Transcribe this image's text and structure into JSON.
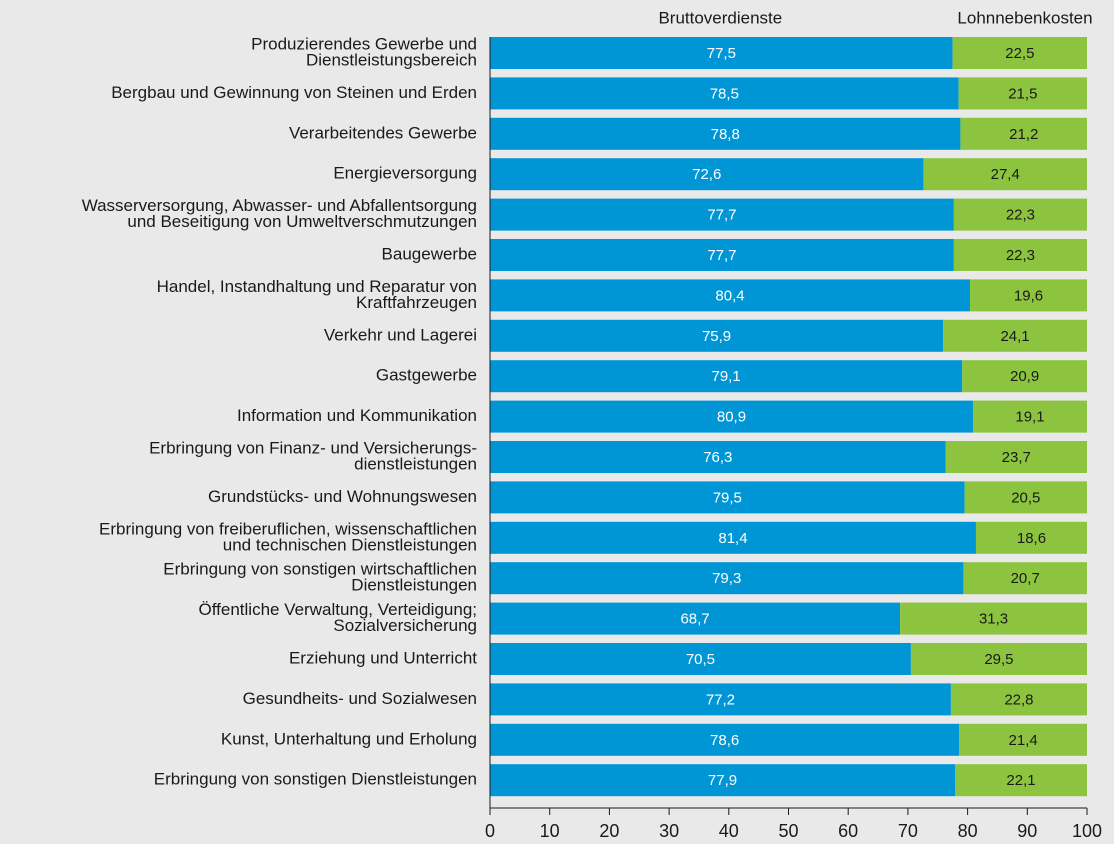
{
  "chart_data": {
    "type": "stacked_barh",
    "categories": [
      [
        "Produzierendes Gewerbe und",
        "Dienstleistungsbereich"
      ],
      [
        "Bergbau und Gewinnung von Steinen und Erden"
      ],
      [
        "Verarbeitendes Gewerbe"
      ],
      [
        "Energieversorgung"
      ],
      [
        "Wasserversorgung, Abwasser- und Abfallentsorgung",
        "und Beseitigung von Umweltverschmutzungen"
      ],
      [
        "Baugewerbe"
      ],
      [
        "Handel, Instandhaltung und Reparatur von",
        "Kraftfahrzeugen"
      ],
      [
        "Verkehr und Lagerei"
      ],
      [
        "Gastgewerbe"
      ],
      [
        "Information und Kommunikation"
      ],
      [
        "Erbringung von Finanz- und Versicherungs-",
        "dienstleistungen"
      ],
      [
        "Grundstücks- und Wohnungswesen"
      ],
      [
        "Erbringung von freiberuflichen, wissenschaftlichen",
        "und technischen Dienstleistungen"
      ],
      [
        "Erbringung von sonstigen wirtschaftlichen",
        "Dienstleistungen"
      ],
      [
        "Öffentliche Verwaltung, Verteidigung;",
        "Sozialversicherung"
      ],
      [
        "Erziehung und Unterricht"
      ],
      [
        "Gesundheits- und Sozialwesen"
      ],
      [
        "Kunst, Unterhaltung und Erholung"
      ],
      [
        "Erbringung von sonstigen Dienstleistungen"
      ]
    ],
    "series": [
      {
        "name": "Bruttoverdienste",
        "color": "#0096d6",
        "values": [
          77.5,
          78.5,
          78.8,
          72.6,
          77.7,
          77.7,
          80.4,
          75.9,
          79.1,
          80.9,
          76.3,
          79.5,
          81.4,
          79.3,
          68.7,
          70.5,
          77.2,
          78.6,
          77.9
        ],
        "value_labels": [
          "77,5",
          "78,5",
          "78,8",
          "72,6",
          "77,7",
          "77,7",
          "80,4",
          "75,9",
          "79,1",
          "80,9",
          "76,3",
          "79,5",
          "81,4",
          "79,3",
          "68,7",
          "70,5",
          "77,2",
          "78,6",
          "77,9"
        ]
      },
      {
        "name": "Lohnnebenkosten",
        "color": "#8cc43f",
        "values": [
          22.5,
          21.5,
          21.2,
          27.4,
          22.3,
          22.3,
          19.6,
          24.1,
          20.9,
          19.1,
          23.7,
          20.5,
          18.6,
          20.7,
          31.3,
          29.5,
          22.8,
          21.4,
          22.1
        ],
        "value_labels": [
          "22,5",
          "21,5",
          "21,2",
          "27,4",
          "22,3",
          "22,3",
          "19,6",
          "24,1",
          "20,9",
          "19,1",
          "23,7",
          "20,5",
          "18,6",
          "20,7",
          "31,3",
          "29,5",
          "22,8",
          "21,4",
          "22,1"
        ]
      }
    ],
    "xlim": [
      0,
      100
    ],
    "xticks": [
      0,
      10,
      20,
      30,
      40,
      50,
      60,
      70,
      80,
      90,
      100
    ],
    "grid": false
  }
}
